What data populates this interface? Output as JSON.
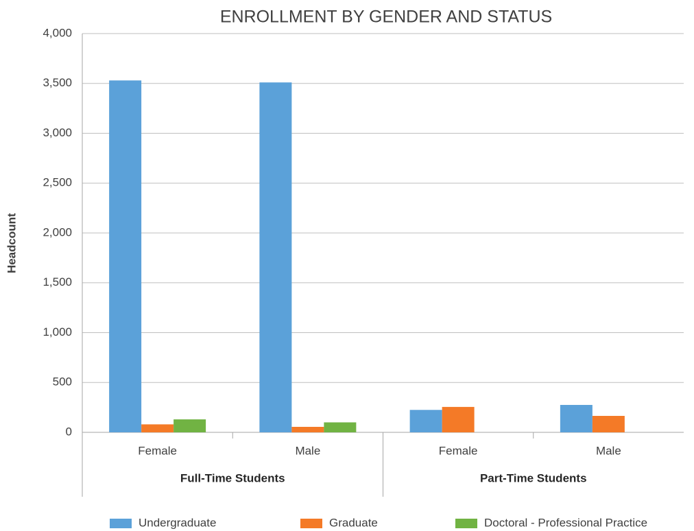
{
  "chart_data": {
    "type": "bar",
    "title": "ENROLLMENT BY GENDER AND STATUS",
    "y_label": "Headcount",
    "groups": [
      {
        "name": "Full-Time Students",
        "categories": [
          "Female",
          "Male"
        ]
      },
      {
        "name": "Part-Time Students",
        "categories": [
          "Female",
          "Male"
        ]
      }
    ],
    "series": [
      {
        "name": "Undergraduate",
        "color": "#5ba1d9",
        "values": [
          3530,
          3510,
          225,
          275
        ]
      },
      {
        "name": "Graduate",
        "color": "#f47a27",
        "values": [
          80,
          55,
          255,
          165
        ]
      },
      {
        "name": "Doctoral - Professional Practice",
        "color": "#71b343",
        "values": [
          130,
          100,
          null,
          null
        ]
      }
    ],
    "ylim": [
      0,
      4000
    ],
    "yticks": [
      0,
      500,
      {
        "value": 1000,
        "label": "1,000"
      },
      {
        "value": 1500,
        "label": "1,500"
      },
      {
        "value": 2000,
        "label": "2,000"
      },
      {
        "value": 2500,
        "label": "2,500"
      },
      {
        "value": 3000,
        "label": "3,000"
      },
      {
        "value": 3500,
        "label": "3,500"
      },
      {
        "value": 4000,
        "label": "4,000"
      }
    ],
    "grid": true,
    "legend": "bottom"
  }
}
